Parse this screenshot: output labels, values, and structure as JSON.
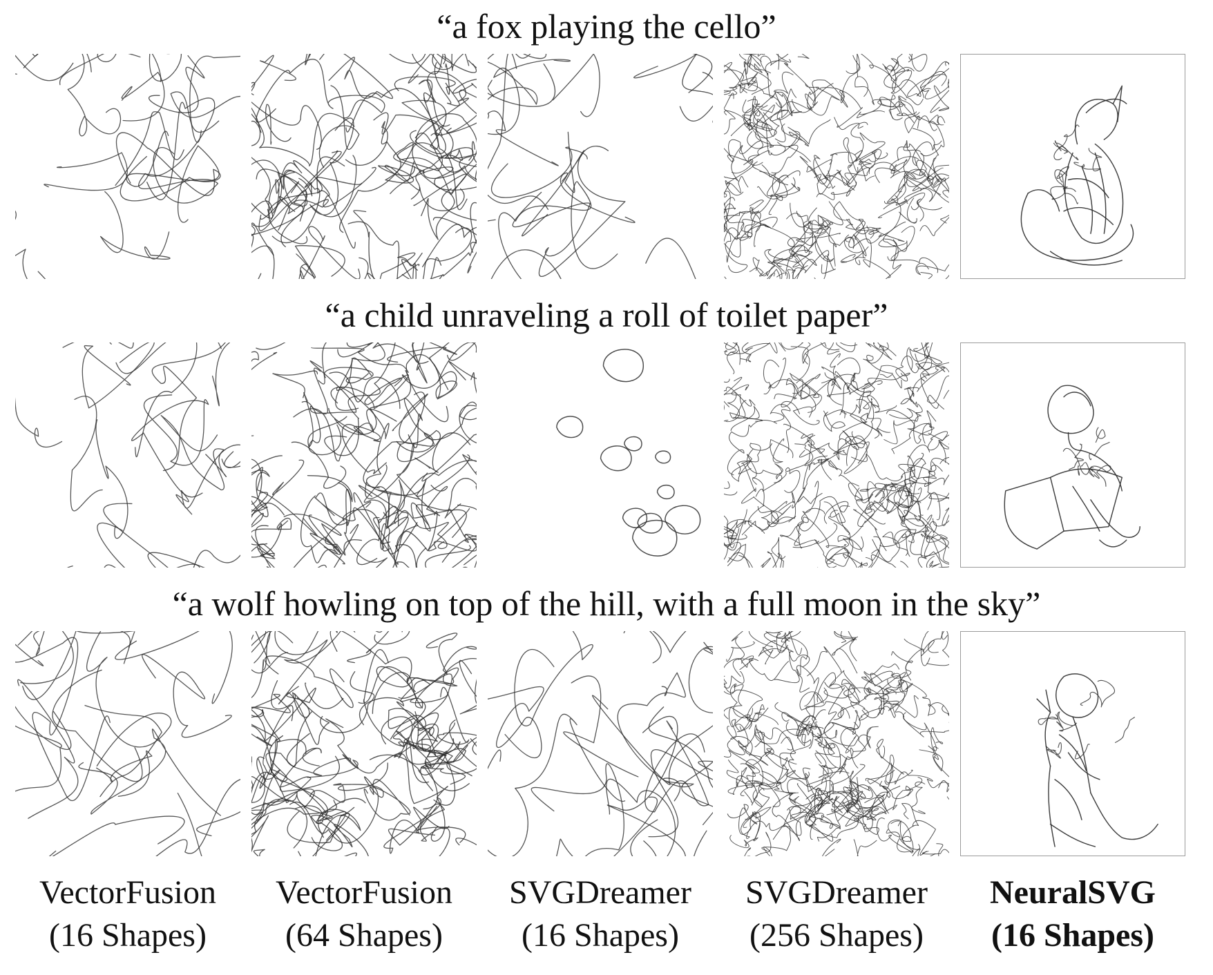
{
  "rows": [
    {
      "prompt": "“a fox playing the cello”"
    },
    {
      "prompt": "“a child unraveling a roll of toilet paper”"
    },
    {
      "prompt": "“a wolf howling on top of the hill, with a full moon in the sky”"
    }
  ],
  "methods": [
    {
      "name": "VectorFusion",
      "shapes": "(16 Shapes)",
      "emphasis": false
    },
    {
      "name": "VectorFusion",
      "shapes": "(64 Shapes)",
      "emphasis": false
    },
    {
      "name": "SVGDreamer",
      "shapes": "(16 Shapes)",
      "emphasis": false
    },
    {
      "name": "SVGDreamer",
      "shapes": "(256 Shapes)",
      "emphasis": false
    },
    {
      "name": "NeuralSVG",
      "shapes": "(16 Shapes)",
      "emphasis": true
    }
  ],
  "colors": {
    "stroke": "#2b2b2b",
    "frame": "#9a9a9a",
    "background": "#ffffff"
  }
}
